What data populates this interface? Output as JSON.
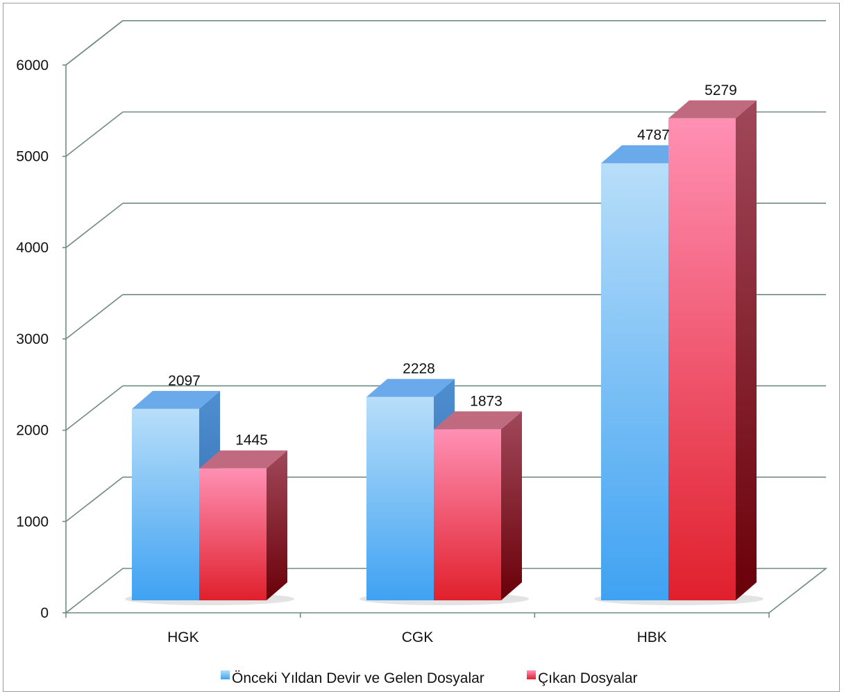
{
  "chart_data": {
    "type": "bar",
    "categories": [
      "HGK",
      "CGK",
      "HBK"
    ],
    "series": [
      {
        "name": "Önceki Yıldan Devir ve Gelen Dosyalar",
        "values": [
          2097,
          2228,
          4787
        ],
        "color": "#5aaef0"
      },
      {
        "name": "Çıkan Dosyalar",
        "values": [
          1445,
          1873,
          5279
        ],
        "color": "#f0506e"
      }
    ],
    "ylim": [
      0,
      6000
    ],
    "yticks": [
      0,
      1000,
      2000,
      3000,
      4000,
      5000,
      6000
    ],
    "grid": true,
    "legend_position": "bottom",
    "title": "",
    "xlabel": "",
    "ylabel": ""
  }
}
